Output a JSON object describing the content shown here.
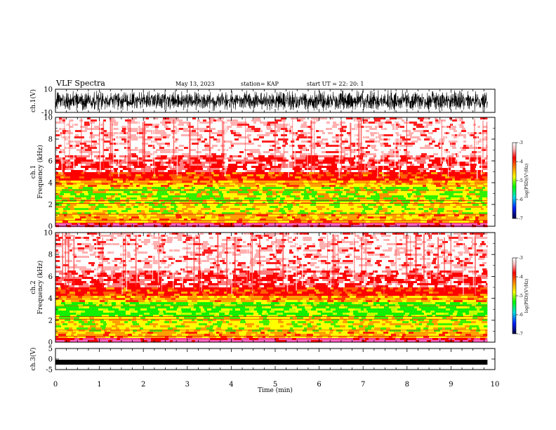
{
  "header": {
    "title": "VLF Spectra",
    "date": "May 13, 2023",
    "station": "station= KAP",
    "start": "start  UT =   22: 20: 1"
  },
  "chart_data": [
    {
      "type": "line",
      "name": "ch1-waveform",
      "ylabel": "ch.1(V)",
      "ylim": [
        -10,
        10
      ],
      "yticks": [
        "10",
        "-10"
      ],
      "x_range_min": [
        0,
        9.83
      ],
      "color": "#000000"
    },
    {
      "type": "heatmap",
      "name": "ch1-spectrogram",
      "ylabel": "ch.1",
      "ylabel2": "Frequency (kHz)",
      "ylim": [
        0,
        10
      ],
      "yticks": [
        "0",
        "2",
        "4",
        "6",
        "8",
        "10"
      ],
      "x_range_min": [
        0,
        9.83
      ],
      "colorbar": {
        "label": "log(PSD)(V²/Hz)",
        "range": [
          -7,
          -3
        ],
        "ticks": [
          "-3",
          "-4",
          "-5",
          "-6",
          "-7"
        ]
      }
    },
    {
      "type": "heatmap",
      "name": "ch2-spectrogram",
      "ylabel": "ch.2",
      "ylabel2": "Frequency (kHz)",
      "ylim": [
        0,
        10
      ],
      "yticks": [
        "0",
        "2",
        "4",
        "6",
        "8",
        "10"
      ],
      "x_range_min": [
        0,
        9.83
      ],
      "colorbar": {
        "label": "log(PSD)(V²/Hz)",
        "range": [
          -7,
          -3
        ],
        "ticks": [
          "-3",
          "-4",
          "-5",
          "-6",
          "-7"
        ]
      }
    },
    {
      "type": "line",
      "name": "ch3-waveform",
      "ylabel": "ch.3(V)",
      "ylim": [
        -5,
        5
      ],
      "yticks": [
        "5",
        "0",
        "-5"
      ],
      "x_range_min": [
        0,
        9.83
      ],
      "color": "#000000"
    }
  ],
  "xaxis": {
    "label": "Time (min)",
    "range": [
      0,
      10
    ],
    "ticks": [
      "0",
      "1",
      "2",
      "3",
      "4",
      "5",
      "6",
      "7",
      "8",
      "9",
      "10"
    ]
  },
  "colorbar_label": "log(PSD)(V²/Hz)"
}
